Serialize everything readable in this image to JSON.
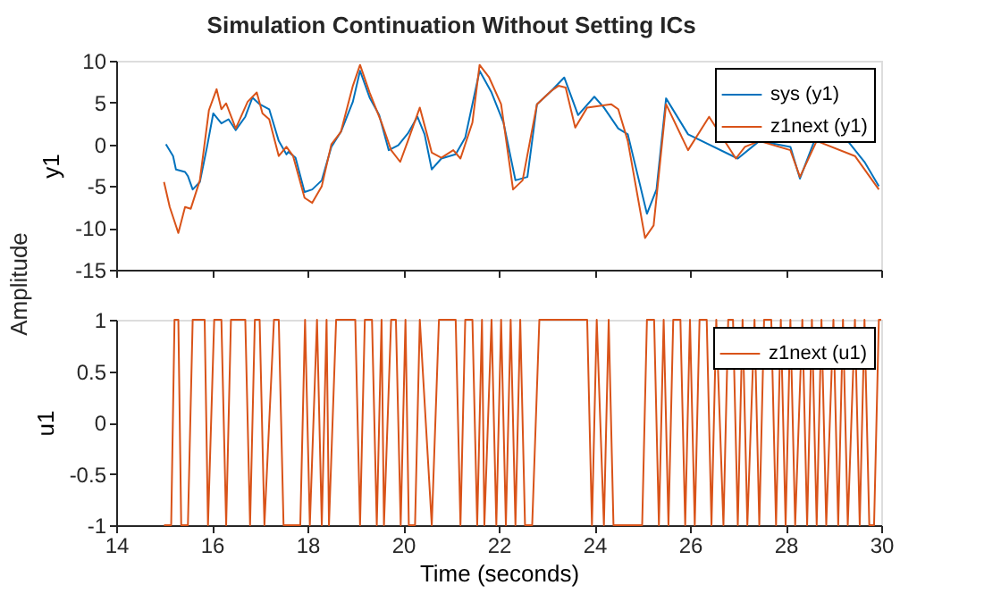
{
  "chart_data": [
    {
      "type": "line",
      "title": "Simulation Continuation Without Setting ICs",
      "ylabel": "y1",
      "annotations": [
        "Amplitude"
      ],
      "xlim": [
        14,
        30
      ],
      "xticks": [
        14,
        16,
        18,
        20,
        22,
        24,
        26,
        28,
        30
      ],
      "ylim": [
        -15,
        10
      ],
      "yticks": [
        -15,
        -10,
        -5,
        0,
        5,
        10
      ],
      "tick_labels": "y",
      "legend": "top right",
      "grid": false,
      "series": [
        {
          "name": "sys (y1)",
          "color": "#0072bd",
          "x": [
            15.04,
            15.19,
            15.25,
            15.44,
            15.5,
            15.6,
            15.75,
            15.9,
            16.03,
            16.2,
            16.35,
            16.5,
            16.7,
            16.85,
            17.0,
            17.2,
            17.4,
            17.56,
            17.6,
            17.75,
            17.94,
            18.1,
            18.3,
            18.5,
            18.7,
            18.95,
            19.1,
            19.3,
            19.5,
            19.7,
            19.9,
            20.1,
            20.3,
            20.45,
            20.6,
            20.8,
            21.1,
            21.3,
            21.6,
            21.85,
            22.1,
            22.35,
            22.6,
            22.8,
            23.1,
            23.37,
            23.66,
            24.0,
            24.2,
            24.5,
            24.7,
            25.1,
            25.3,
            25.5,
            25.96,
            26.3,
            26.8,
            27.0,
            27.45,
            27.7,
            28.1,
            28.3,
            28.6,
            28.95,
            29.3,
            29.65,
            29.95
          ],
          "values": [
            0,
            -1.4,
            -3,
            -3.3,
            -3.8,
            -5.4,
            -4.5,
            -0.3,
            3.7,
            2.5,
            3,
            1.7,
            3.3,
            5.6,
            4.8,
            4.2,
            0.4,
            -1.2,
            -0.9,
            -1.6,
            -5.7,
            -5.4,
            -4.3,
            -0.3,
            1.5,
            5.1,
            8.8,
            5.6,
            3.5,
            -0.7,
            -0.1,
            1.3,
            3.3,
            1.2,
            -3,
            -1.7,
            -1.2,
            0.8,
            8.8,
            6.2,
            2.6,
            -4.3,
            -3.9,
            4.8,
            6.4,
            8,
            3.5,
            5.7,
            4.4,
            1.9,
            1.2,
            -8.3,
            -5.4,
            5.5,
            1.2,
            null,
            null,
            -1.7,
            0.4,
            null,
            -0.3,
            -4.1,
            0.4,
            null,
            0.4,
            -2.1,
            -5
          ]
        },
        {
          "name": "z1next (y1)",
          "color": "#d95319",
          "x": [
            15.0,
            15.12,
            15.3,
            15.44,
            15.56,
            15.75,
            15.94,
            16.1,
            16.2,
            16.3,
            16.5,
            16.75,
            16.94,
            17.06,
            17.2,
            17.4,
            17.56,
            17.7,
            17.94,
            18.1,
            18.3,
            18.5,
            18.7,
            18.95,
            19.1,
            19.3,
            19.55,
            19.75,
            19.94,
            20.1,
            20.35,
            20.5,
            20.6,
            20.8,
            21.05,
            21.2,
            21.45,
            21.6,
            21.8,
            22.05,
            22.3,
            22.5,
            22.8,
            23.1,
            23.25,
            23.4,
            23.6,
            23.85,
            24.35,
            24.5,
            24.7,
            25.06,
            25.24,
            25.5,
            25.96,
            26.4,
            26.96,
            27.15,
            27.45,
            28.1,
            28.3,
            28.65,
            29.0,
            29.45,
            29.95
          ],
          "values": [
            -4.5,
            -7.5,
            -10.6,
            -7.5,
            -7.7,
            -4.3,
            4.1,
            6.6,
            4.2,
            4.9,
            1.9,
            5.1,
            6.2,
            3.7,
            3,
            -1.4,
            -0.3,
            -1.4,
            -6.4,
            -7,
            -5,
            0,
            1.5,
            7,
            9.5,
            6.2,
            2.6,
            -0.7,
            -2.1,
            0.4,
            4.4,
            1.2,
            -1,
            -1.6,
            -0.7,
            -1.7,
            2.6,
            9.5,
            8,
            4.8,
            -5.4,
            -4.3,
            4.8,
            6.4,
            7,
            6.8,
            2,
            4.4,
            4.8,
            4.2,
            0.4,
            -11.2,
            -9.7,
            4.8,
            -0.7,
            3.3,
            -1.7,
            -0.3,
            0.4,
            -0.7,
            -3.9,
            0.4,
            null,
            -1.4,
            -5.4
          ]
        }
      ]
    },
    {
      "type": "line",
      "xlabel": "Time (seconds)",
      "ylabel": "u1",
      "xlim": [
        14,
        30
      ],
      "xticks": [
        14,
        16,
        18,
        20,
        22,
        24,
        26,
        28,
        30
      ],
      "ylim": [
        -1,
        1
      ],
      "yticks": [
        -1,
        -0.5,
        0,
        0.5,
        1
      ],
      "legend": "top right",
      "grid": false,
      "series": [
        {
          "name": "z1next (u1)",
          "color": "#d95319",
          "x": [
            15.0,
            15.15,
            15.22,
            15.3,
            15.36,
            15.5,
            15.6,
            15.85,
            15.92,
            16.05,
            16.2,
            16.3,
            16.4,
            16.7,
            16.8,
            16.9,
            17.0,
            17.1,
            17.3,
            17.4,
            17.5,
            17.85,
            17.95,
            18.05,
            18.2,
            18.3,
            18.4,
            18.45,
            18.6,
            19.0,
            19.1,
            19.2,
            19.35,
            19.45,
            19.55,
            19.6,
            19.75,
            19.85,
            19.95,
            20.05,
            20.12,
            20.25,
            20.35,
            20.6,
            20.75,
            21.1,
            21.2,
            21.3,
            21.45,
            21.55,
            21.65,
            21.7,
            21.85,
            21.95,
            22.05,
            22.15,
            22.25,
            22.35,
            22.45,
            22.55,
            22.7,
            22.85,
            23.85,
            23.95,
            24.05,
            24.2,
            24.3,
            24.4,
            24.6,
            25.0,
            25.1,
            25.25,
            25.35,
            25.45,
            25.55,
            25.65,
            25.8,
            25.9,
            26.0,
            26.1,
            26.2,
            26.35,
            26.45,
            26.55,
            26.7,
            26.8,
            26.9,
            27.0,
            27.1,
            27.2,
            27.35,
            27.45,
            27.55,
            27.7,
            27.8,
            27.9,
            28.0,
            28.1,
            28.2,
            28.35,
            28.45,
            28.55,
            28.65,
            28.75,
            28.85,
            29.0,
            29.1,
            29.2,
            29.3,
            29.45,
            29.55,
            29.65,
            29.75,
            29.85,
            29.95,
            30.0
          ],
          "values": [
            -1,
            -1,
            1,
            1,
            -1,
            -1,
            1,
            1,
            -1,
            1,
            1,
            -1,
            1,
            1,
            -1,
            1,
            1,
            -1,
            1,
            1,
            -1,
            -1,
            1,
            -1,
            1,
            -1,
            1,
            -1,
            1,
            1,
            -1,
            1,
            1,
            -1,
            1,
            -1,
            1,
            1,
            -1,
            1,
            -1,
            -1,
            1,
            -1,
            1,
            1,
            -1,
            1,
            1,
            -1,
            1,
            -1,
            1,
            -1,
            1,
            -1,
            1,
            -1,
            1,
            -1,
            -1,
            1,
            1,
            -1,
            1,
            -1,
            1,
            -1,
            -1,
            -1,
            1,
            1,
            -1,
            1,
            -1,
            1,
            1,
            -1,
            1,
            -1,
            1,
            1,
            -1,
            1,
            -1,
            1,
            1,
            -1,
            1,
            -1,
            1,
            -1,
            1,
            1,
            -1,
            1,
            -1,
            1,
            -1,
            1,
            -1,
            1,
            -1,
            1,
            -1,
            1,
            -1,
            1,
            -1,
            1,
            -1,
            1,
            -1,
            -1,
            1,
            1
          ]
        }
      ]
    }
  ]
}
